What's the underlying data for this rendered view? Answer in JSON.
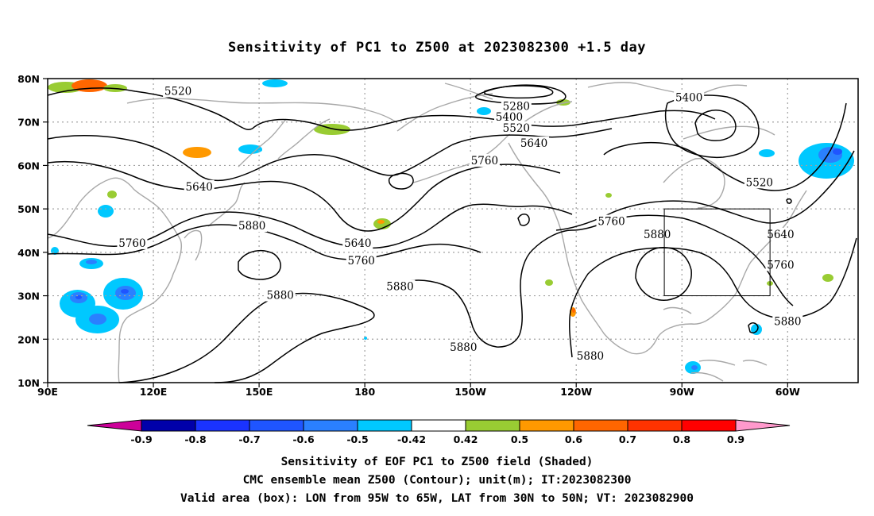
{
  "title": "Sensitivity of PC1 to Z500 at 2023082300 +1.5 day",
  "captions": {
    "line1": "Sensitivity of EOF PC1 to Z500 field (Shaded)",
    "line2": "CMC ensemble mean Z500 (Contour); unit(m); IT:2023082300",
    "line3": "Valid area (box): LON from 95W to 65W, LAT from 30N to 50N; VT: 2023082900"
  },
  "map": {
    "lat_labels": [
      "80N",
      "70N",
      "60N",
      "50N",
      "40N",
      "30N",
      "20N",
      "10N"
    ],
    "lon_labels": [
      "90E",
      "120E",
      "150E",
      "180",
      "150W",
      "120W",
      "90W",
      "60W"
    ],
    "box": {
      "lon_min": -95,
      "lon_max": -65,
      "lat_min": 30,
      "lat_max": 50
    },
    "colors": {
      "contour": "#000000",
      "coast": "#a8a8a8",
      "grid": "#a0a0a0"
    }
  },
  "contour_labels": [
    {
      "text": "5520",
      "lon": 127,
      "lat": 77
    },
    {
      "text": "5640",
      "lon": 133,
      "lat": 55
    },
    {
      "text": "5760",
      "lon": 114,
      "lat": 42
    },
    {
      "text": "5880",
      "lon": 148,
      "lat": 46
    },
    {
      "text": "5880",
      "lon": 156,
      "lat": 30
    },
    {
      "text": "5640",
      "lon": 178,
      "lat": 42
    },
    {
      "text": "5760",
      "lon": 179,
      "lat": 38
    },
    {
      "text": "5880",
      "lon": -170,
      "lat": 32
    },
    {
      "text": "5880",
      "lon": -152,
      "lat": 18
    },
    {
      "text": "5760",
      "lon": -146,
      "lat": 61
    },
    {
      "text": "5280",
      "lon": -137,
      "lat": 73.5
    },
    {
      "text": "5400",
      "lon": -139,
      "lat": 71
    },
    {
      "text": "5520",
      "lon": -137,
      "lat": 68.5
    },
    {
      "text": "5640",
      "lon": -132,
      "lat": 65
    },
    {
      "text": "5400",
      "lon": -88,
      "lat": 75.5
    },
    {
      "text": "5520",
      "lon": -68,
      "lat": 56
    },
    {
      "text": "5760",
      "lon": -110,
      "lat": 47
    },
    {
      "text": "5880",
      "lon": -97,
      "lat": 44
    },
    {
      "text": "5640",
      "lon": -62,
      "lat": 44
    },
    {
      "text": "5760",
      "lon": -62,
      "lat": 37
    },
    {
      "text": "5880",
      "lon": -60,
      "lat": 24
    },
    {
      "text": "5880",
      "lon": -116,
      "lat": 16
    }
  ],
  "colorbar": {
    "labels": [
      "-0.9",
      "-0.8",
      "-0.7",
      "-0.6",
      "-0.5",
      "-0.42",
      "0.42",
      "0.5",
      "0.6",
      "0.7",
      "0.8",
      "0.9"
    ],
    "colors": [
      "#0000aa",
      "#1a33ff",
      "#1f55ff",
      "#2a80ff",
      "#00c8ff",
      "#ffffff",
      "#99cc33",
      "#ff9900",
      "#ff6600",
      "#ff3300",
      "#ff0000"
    ],
    "low_color": "#cc0099",
    "high_color": "#ff99cc"
  }
}
